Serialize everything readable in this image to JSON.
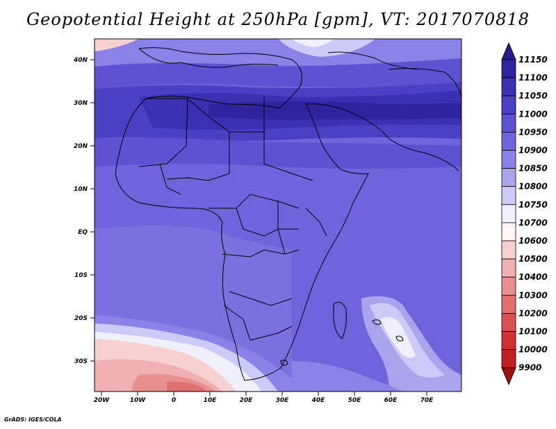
{
  "title": "Geopotential Height at 250hPa [gpm], VT: 2017070818",
  "credit": "GrADS: IGES/COLA",
  "lat_labels": [
    "40N",
    "30N",
    "20N",
    "10N",
    "EQ",
    "10S",
    "20S",
    "30S"
  ],
  "lon_labels": [
    "20W",
    "10W",
    "0",
    "10E",
    "20E",
    "30E",
    "40E",
    "50E",
    "60E",
    "70E"
  ],
  "colorbar": {
    "levels": [
      "11150",
      "11100",
      "11050",
      "11000",
      "10950",
      "10900",
      "10850",
      "10800",
      "10750",
      "10700",
      "10600",
      "10500",
      "10400",
      "10300",
      "10200",
      "10100",
      "10000",
      "9900"
    ],
    "colors": [
      "#241c8c",
      "#2e24a0",
      "#3a30b2",
      "#4a40c4",
      "#5c52d2",
      "#6e64dc",
      "#8a82e6",
      "#aaa4ee",
      "#cccaf6",
      "#f0f0fc",
      "#fff4f4",
      "#f8d0d0",
      "#f0b0b0",
      "#e89090",
      "#e07070",
      "#d85050",
      "#d03030",
      "#c02020",
      "#a01010"
    ]
  }
}
